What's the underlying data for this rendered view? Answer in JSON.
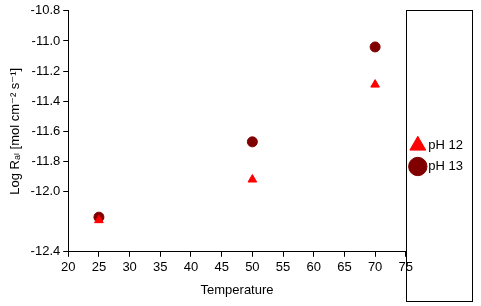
{
  "chart_data": {
    "type": "scatter",
    "x_label": "Temperature",
    "y_label": "Log Rₐₗ [mol cm⁻² s⁻¹]",
    "x": [
      25,
      50,
      70
    ],
    "series": [
      {
        "name": "pH 12",
        "color": "#ff0000",
        "marker": "triangle",
        "values": [
          -12.19,
          -11.92,
          -11.29
        ]
      },
      {
        "name": "pH 13",
        "color": "#800000",
        "marker": "circle",
        "values": [
          -12.17,
          -11.67,
          -11.04
        ]
      }
    ],
    "xlim": [
      20,
      75
    ],
    "xticks": [
      20,
      25,
      30,
      35,
      40,
      45,
      50,
      55,
      60,
      65,
      70,
      75
    ],
    "ylim": [
      -12.4,
      -10.8
    ],
    "yticks": [
      -12.4,
      {
        "value": -12,
        "label": "-12.0"
      },
      -11.8,
      -11.6,
      -11.4,
      -11.2,
      {
        "value": -11,
        "label": "-11.0"
      },
      -10.8
    ],
    "grid": false,
    "legend": "right"
  }
}
